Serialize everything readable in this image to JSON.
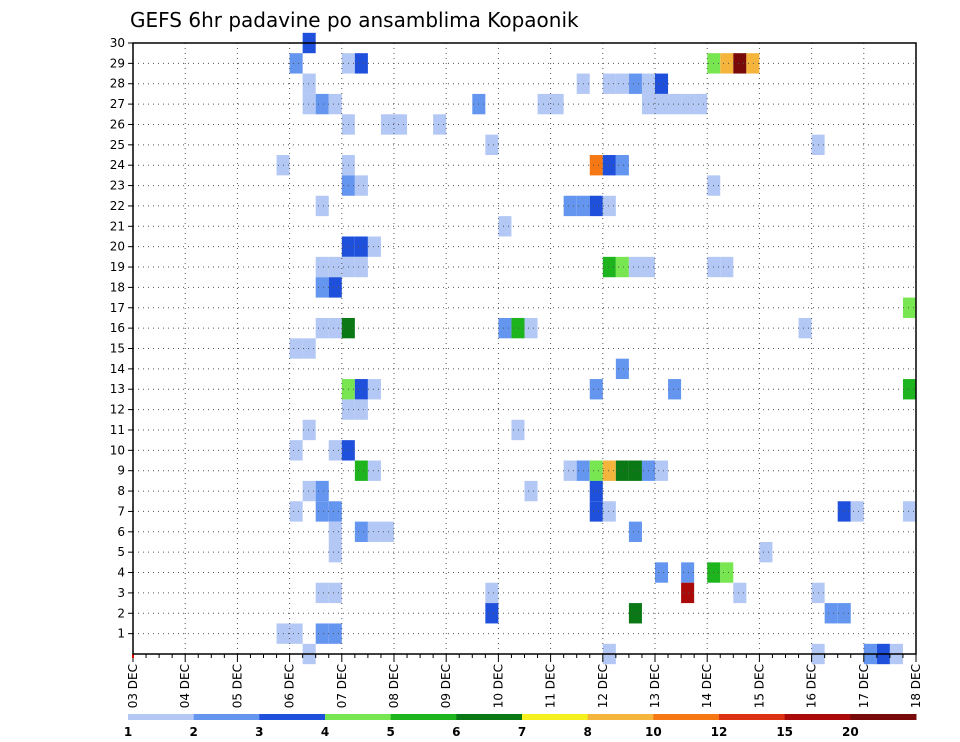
{
  "chart_data": {
    "type": "heatmap",
    "title": "GEFS 6hr padavine po ansamblima Kopaonik",
    "x_labels": [
      "03 DEC",
      "04 DEC",
      "05 DEC",
      "06 DEC",
      "07 DEC",
      "08 DEC",
      "09 DEC",
      "10 DEC",
      "11 DEC",
      "12 DEC",
      "13 DEC",
      "14 DEC",
      "15 DEC",
      "16 DEC",
      "17 DEC",
      "18 DEC"
    ],
    "y_labels": [
      "1",
      "2",
      "3",
      "4",
      "5",
      "6",
      "7",
      "8",
      "9",
      "10",
      "11",
      "12",
      "13",
      "14",
      "15",
      "16",
      "17",
      "18",
      "19",
      "20",
      "21",
      "22",
      "23",
      "24",
      "25",
      "26",
      "27",
      "28",
      "29",
      "30"
    ],
    "x_unit": "6-hour steps from 03 DEC 00Z",
    "xlim": [
      0,
      60
    ],
    "ylim": [
      0,
      30
    ],
    "grid": true,
    "colorbar": {
      "labels": [
        "1",
        "2",
        "3",
        "4",
        "5",
        "6",
        "7",
        "8",
        "10",
        "12",
        "15",
        "20"
      ],
      "colors": [
        "#b4c8f5",
        "#6496f0",
        "#1e50dc",
        "#78e650",
        "#1eb41e",
        "#0a7814",
        "#f5f01e",
        "#f5b43c",
        "#f57814",
        "#dc3214",
        "#aa0a0a",
        "#780a0a"
      ]
    },
    "cells": [
      {
        "m": 30,
        "t": [
          [
            13.5,
            2
          ]
        ]
      },
      {
        "m": 29,
        "t": [
          [
            12.5,
            1
          ],
          [
            16.5,
            0
          ],
          [
            17.5,
            2
          ],
          [
            44.5,
            3
          ],
          [
            45.5,
            7
          ],
          [
            46.5,
            11
          ],
          [
            47.5,
            7
          ]
        ]
      },
      {
        "m": 28,
        "t": [
          [
            13.5,
            0
          ],
          [
            34.5,
            0
          ],
          [
            36.5,
            0
          ],
          [
            37.5,
            0
          ],
          [
            38.5,
            1
          ],
          [
            39.5,
            0
          ],
          [
            40.5,
            2
          ]
        ]
      },
      {
        "m": 27,
        "t": [
          [
            13.5,
            0
          ],
          [
            14.5,
            1
          ],
          [
            15.5,
            0
          ],
          [
            26.5,
            1
          ],
          [
            31.5,
            0
          ],
          [
            32.5,
            0
          ],
          [
            39.5,
            0
          ],
          [
            40.5,
            0
          ],
          [
            41.5,
            0
          ],
          [
            42.5,
            0
          ],
          [
            43.5,
            0
          ]
        ]
      },
      {
        "m": 26,
        "t": [
          [
            16.5,
            0
          ],
          [
            19.5,
            0
          ],
          [
            20.5,
            0
          ],
          [
            23.5,
            0
          ]
        ]
      },
      {
        "m": 25,
        "t": [
          [
            27.5,
            0
          ],
          [
            52.5,
            0
          ]
        ]
      },
      {
        "m": 24,
        "t": [
          [
            11.5,
            0
          ],
          [
            16.5,
            0
          ],
          [
            35.5,
            8
          ],
          [
            36.5,
            2
          ],
          [
            37.5,
            1
          ]
        ]
      },
      {
        "m": 23,
        "t": [
          [
            16.5,
            1
          ],
          [
            17.5,
            0
          ],
          [
            44.5,
            0
          ]
        ]
      },
      {
        "m": 22,
        "t": [
          [
            14.5,
            0
          ],
          [
            33.5,
            1
          ],
          [
            34.5,
            1
          ],
          [
            35.5,
            2
          ],
          [
            36.5,
            0
          ]
        ]
      },
      {
        "m": 21,
        "t": [
          [
            28.5,
            0
          ]
        ]
      },
      {
        "m": 20,
        "t": [
          [
            16.5,
            2
          ],
          [
            17.5,
            2
          ],
          [
            18.5,
            0
          ]
        ]
      },
      {
        "m": 19,
        "t": [
          [
            14.5,
            0
          ],
          [
            15.5,
            0
          ],
          [
            16.5,
            0
          ],
          [
            17.5,
            0
          ],
          [
            36.5,
            4
          ],
          [
            37.5,
            3
          ],
          [
            38.5,
            0
          ],
          [
            39.5,
            0
          ],
          [
            44.5,
            0
          ],
          [
            45.5,
            0
          ]
        ]
      },
      {
        "m": 18,
        "t": [
          [
            14.5,
            1
          ],
          [
            15.5,
            2
          ]
        ]
      },
      {
        "m": 17,
        "t": [
          [
            59.5,
            3
          ]
        ]
      },
      {
        "m": 16,
        "t": [
          [
            14.5,
            0
          ],
          [
            15.5,
            0
          ],
          [
            16.5,
            5
          ],
          [
            28.5,
            1
          ],
          [
            29.5,
            4
          ],
          [
            30.5,
            0
          ],
          [
            51.5,
            0
          ]
        ]
      },
      {
        "m": 15,
        "t": [
          [
            12.5,
            0
          ],
          [
            13.5,
            0
          ]
        ]
      },
      {
        "m": 14,
        "t": [
          [
            37.5,
            1
          ]
        ]
      },
      {
        "m": 13,
        "t": [
          [
            16.5,
            3
          ],
          [
            17.5,
            2
          ],
          [
            18.5,
            0
          ],
          [
            35.5,
            1
          ],
          [
            41.5,
            1
          ],
          [
            59.5,
            4
          ]
        ]
      },
      {
        "m": 12,
        "t": [
          [
            16.5,
            0
          ],
          [
            17.5,
            0
          ]
        ]
      },
      {
        "m": 11,
        "t": [
          [
            13.5,
            0
          ],
          [
            29.5,
            0
          ]
        ]
      },
      {
        "m": 10,
        "t": [
          [
            12.5,
            0
          ],
          [
            15.5,
            0
          ],
          [
            16.5,
            2
          ]
        ]
      },
      {
        "m": 9,
        "t": [
          [
            17.5,
            4
          ],
          [
            18.5,
            0
          ],
          [
            33.5,
            0
          ],
          [
            34.5,
            1
          ],
          [
            35.5,
            3
          ],
          [
            36.5,
            7
          ],
          [
            37.5,
            5
          ],
          [
            38.5,
            5
          ],
          [
            39.5,
            1
          ],
          [
            40.5,
            0
          ]
        ]
      },
      {
        "m": 8,
        "t": [
          [
            13.5,
            0
          ],
          [
            14.5,
            1
          ],
          [
            30.5,
            0
          ],
          [
            35.5,
            2
          ]
        ]
      },
      {
        "m": 7,
        "t": [
          [
            12.5,
            0
          ],
          [
            14.5,
            1
          ],
          [
            15.5,
            1
          ],
          [
            35.5,
            2
          ],
          [
            36.5,
            0
          ],
          [
            54.5,
            2
          ],
          [
            55.5,
            0
          ],
          [
            59.5,
            0
          ]
        ]
      },
      {
        "m": 6,
        "t": [
          [
            15.5,
            0
          ],
          [
            17.5,
            1
          ],
          [
            18.5,
            0
          ],
          [
            19.5,
            0
          ],
          [
            38.5,
            1
          ]
        ]
      },
      {
        "m": 5,
        "t": [
          [
            15.5,
            0
          ],
          [
            48.5,
            0
          ]
        ]
      },
      {
        "m": 4,
        "t": [
          [
            40.5,
            1
          ],
          [
            42.5,
            1
          ],
          [
            44.5,
            4
          ],
          [
            45.5,
            3
          ]
        ]
      },
      {
        "m": 3,
        "t": [
          [
            14.5,
            0
          ],
          [
            15.5,
            0
          ],
          [
            27.5,
            0
          ],
          [
            42.5,
            10
          ],
          [
            46.5,
            0
          ],
          [
            52.5,
            0
          ]
        ]
      },
      {
        "m": 2,
        "t": [
          [
            27.5,
            2
          ],
          [
            38.5,
            5
          ],
          [
            53.5,
            1
          ],
          [
            54.5,
            1
          ]
        ]
      },
      {
        "m": 1,
        "t": [
          [
            11.5,
            0
          ],
          [
            12.5,
            0
          ],
          [
            14.5,
            1
          ],
          [
            15.5,
            1
          ]
        ]
      },
      {
        "m": 0,
        "t": [
          [
            13.5,
            0
          ],
          [
            36.5,
            0
          ],
          [
            52.5,
            0
          ],
          [
            56.5,
            1
          ],
          [
            57.5,
            2
          ],
          [
            58.5,
            0
          ]
        ]
      }
    ]
  }
}
